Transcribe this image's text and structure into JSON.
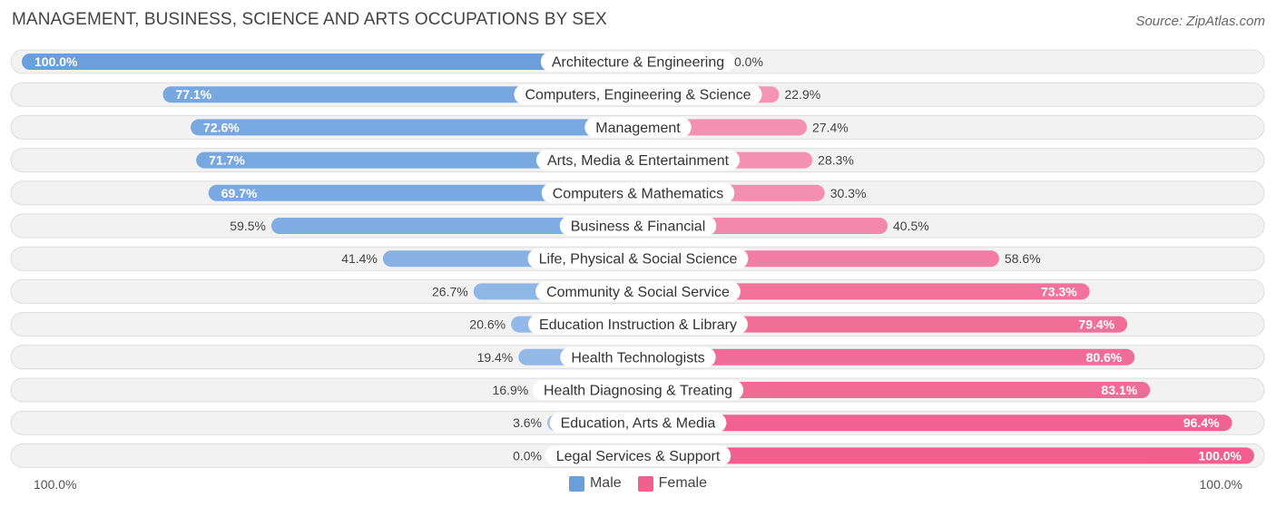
{
  "title": "MANAGEMENT, BUSINESS, SCIENCE AND ARTS OCCUPATIONS BY SEX",
  "source": "Source: ZipAtlas.com",
  "colors": {
    "male": "#6a9fdc",
    "male_light": "#9dc0ea",
    "female": "#f0608f",
    "female_light": "#f6a3c0",
    "track": "#f2f2f2",
    "track_border": "#dddddd"
  },
  "chart_data": {
    "type": "bar",
    "orientation": "horizontal-diverging",
    "title": "MANAGEMENT, BUSINESS, SCIENCE AND ARTS OCCUPATIONS BY SEX",
    "categories": [
      "Architecture & Engineering",
      "Computers, Engineering & Science",
      "Management",
      "Arts, Media & Entertainment",
      "Computers & Mathematics",
      "Business & Financial",
      "Life, Physical & Social Science",
      "Community & Social Service",
      "Education Instruction & Library",
      "Health Technologists",
      "Health Diagnosing & Treating",
      "Education, Arts & Media",
      "Legal Services & Support"
    ],
    "series": [
      {
        "name": "Male",
        "values": [
          100.0,
          77.1,
          72.6,
          71.7,
          69.7,
          59.5,
          41.4,
          26.7,
          20.6,
          19.4,
          16.9,
          3.6,
          0.0
        ]
      },
      {
        "name": "Female",
        "values": [
          0.0,
          22.9,
          27.4,
          28.3,
          30.3,
          40.5,
          58.6,
          73.3,
          79.4,
          80.6,
          83.1,
          96.4,
          100.0
        ]
      }
    ],
    "value_labels": {
      "male": [
        "100.0%",
        "77.1%",
        "72.6%",
        "71.7%",
        "69.7%",
        "59.5%",
        "41.4%",
        "26.7%",
        "20.6%",
        "19.4%",
        "16.9%",
        "3.6%",
        "0.0%"
      ],
      "female": [
        "0.0%",
        "22.9%",
        "27.4%",
        "28.3%",
        "30.3%",
        "40.5%",
        "58.6%",
        "73.3%",
        "79.4%",
        "80.6%",
        "83.1%",
        "96.4%",
        "100.0%"
      ]
    },
    "xlim": [
      0,
      100
    ],
    "axis_left_label": "100.0%",
    "axis_right_label": "100.0%",
    "legend": [
      "Male",
      "Female"
    ],
    "legend_position": "bottom-center"
  }
}
